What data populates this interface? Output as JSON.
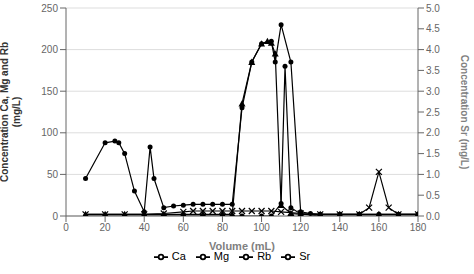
{
  "chart_data": {
    "type": "line",
    "xlabel": "Volume (mL)",
    "ylabel": "Concentration Ca, Mg and Rb\n(mg/L)",
    "y2label": "Concentration Sr (mg/L)",
    "xlim": [
      0,
      180
    ],
    "ylim": [
      0,
      250
    ],
    "y2lim": [
      0,
      5
    ],
    "xticks": [
      0,
      20,
      40,
      60,
      80,
      100,
      120,
      140,
      160,
      180
    ],
    "yticks": [
      0,
      50,
      100,
      150,
      200,
      250
    ],
    "y2ticks": [
      {
        "value": 0,
        "label": "0.0"
      },
      0.5,
      {
        "value": 1,
        "label": "1.0"
      },
      1.5,
      {
        "value": 2,
        "label": "2.0"
      },
      2.5,
      {
        "value": 3,
        "label": "3.0"
      },
      3.5,
      {
        "value": 4,
        "label": "4.0"
      },
      4.5,
      {
        "value": 5,
        "label": "5.0"
      }
    ],
    "grid": true,
    "legend": "bottom",
    "series": [
      {
        "name": "Ca",
        "color": "black",
        "marker": "circle",
        "x": [
          10,
          20,
          25,
          27,
          30,
          35,
          40,
          43,
          45,
          50,
          55,
          60,
          65,
          70,
          75,
          80,
          85,
          90,
          95,
          100,
          105,
          107,
          110,
          115,
          120,
          125,
          130,
          140,
          150,
          160,
          170,
          180
        ],
        "values": [
          45,
          88,
          90,
          88,
          75,
          30,
          5,
          83,
          45,
          10,
          12,
          13,
          14,
          14,
          14,
          14,
          14,
          130,
          185,
          207,
          210,
          185,
          230,
          185,
          5,
          3,
          2,
          2,
          2,
          2,
          2,
          2
        ]
      },
      {
        "name": "Mg",
        "color": "black",
        "marker": "triangle",
        "x": [
          10,
          20,
          30,
          40,
          50,
          60,
          70,
          80,
          85,
          90,
          95,
          100,
          103,
          105,
          107,
          110,
          115,
          120,
          130,
          140,
          150,
          160,
          170,
          180
        ],
        "values": [
          2,
          2,
          2,
          2,
          2,
          2,
          2,
          2,
          2,
          135,
          185,
          207,
          210,
          208,
          195,
          13,
          3,
          2,
          2,
          2,
          2,
          2,
          2,
          2
        ]
      },
      {
        "name": "Rb",
        "color": "black",
        "marker": "x",
        "x": [
          10,
          20,
          30,
          40,
          50,
          60,
          65,
          70,
          75,
          80,
          85,
          90,
          95,
          100,
          105,
          110,
          115,
          120,
          130,
          140,
          150,
          155,
          160,
          165,
          170,
          180
        ],
        "values": [
          2,
          2,
          2,
          2,
          3,
          5,
          6,
          6,
          6,
          6,
          6,
          6,
          6,
          6,
          6,
          5,
          4,
          3,
          2,
          2,
          2,
          10,
          53,
          10,
          2,
          2
        ]
      },
      {
        "name": "Sr",
        "color": "black",
        "marker": "circle",
        "axis": "y2",
        "x": [
          10,
          20,
          30,
          40,
          50,
          60,
          70,
          80,
          90,
          100,
          105,
          110,
          112,
          115,
          120,
          130,
          140,
          150,
          160,
          170,
          180
        ],
        "values": [
          0.0,
          0.0,
          0.0,
          0.0,
          0.0,
          0.0,
          0.0,
          0.0,
          0.0,
          0.0,
          0.0,
          0.3,
          3.6,
          0.2,
          0.05,
          0.0,
          0.0,
          0.0,
          0.0,
          0.0,
          0.0
        ]
      }
    ]
  }
}
